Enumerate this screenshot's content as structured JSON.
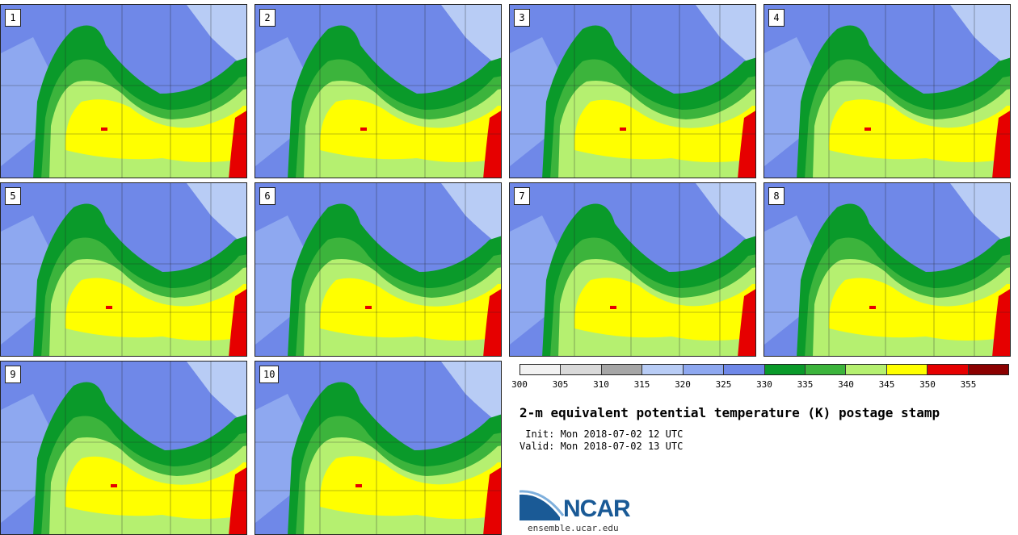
{
  "stamps": [
    {
      "label": "1"
    },
    {
      "label": "2"
    },
    {
      "label": "3"
    },
    {
      "label": "4"
    },
    {
      "label": "5"
    },
    {
      "label": "6"
    },
    {
      "label": "7"
    },
    {
      "label": "8"
    },
    {
      "label": "9"
    },
    {
      "label": "10"
    }
  ],
  "colorbar": {
    "colors": [
      "#f2f2f2",
      "#d9d9d9",
      "#a6a6a6",
      "#b8ccf5",
      "#8ea8f0",
      "#6f88e8",
      "#0a9a2a",
      "#3cb43c",
      "#b5f070",
      "#ffff00",
      "#e60000",
      "#8b0000"
    ],
    "ticks": [
      "300",
      "305",
      "310",
      "315",
      "320",
      "325",
      "330",
      "335",
      "340",
      "345",
      "350",
      "355"
    ]
  },
  "title": "2-m equivalent potential temperature (K) postage stamp",
  "init": " Init: Mon 2018-07-02 12 UTC",
  "valid": "Valid: Mon 2018-07-02 13 UTC",
  "logo": {
    "text": "NCAR",
    "url": "ensemble.ucar.edu"
  }
}
